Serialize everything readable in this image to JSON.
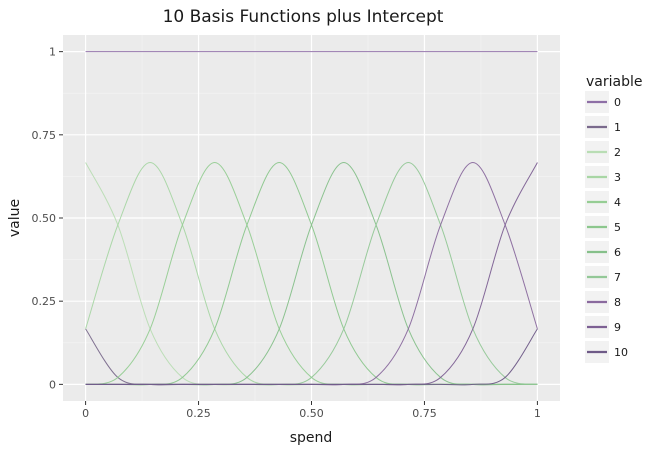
{
  "chart_data": {
    "type": "line",
    "title": "10 Basis Functions plus Intercept",
    "xlabel": "spend",
    "ylabel": "value",
    "xlim": [
      -0.05,
      1.05
    ],
    "ylim": [
      -0.05,
      1.05
    ],
    "x_ticks": [
      {
        "value": 0,
        "label": "0"
      },
      {
        "value": 0.25,
        "label": "0.25"
      },
      {
        "value": 0.5,
        "label": "0.50"
      },
      {
        "value": 0.75,
        "label": "0.75"
      },
      {
        "value": 1,
        "label": "1"
      }
    ],
    "y_ticks": [
      {
        "value": 0,
        "label": "0"
      },
      {
        "value": 0.25,
        "label": "0.25"
      },
      {
        "value": 0.5,
        "label": "0.50"
      },
      {
        "value": 0.75,
        "label": "0.75"
      },
      {
        "value": 1,
        "label": "1"
      }
    ],
    "grid": true,
    "legend": {
      "title": "variable",
      "position": "right"
    },
    "x": [
      0,
      0.0714,
      0.1429,
      0.2143,
      0.2857,
      0.3571,
      0.4286,
      0.5,
      0.5714,
      0.6429,
      0.7143,
      0.7857,
      0.8571,
      0.9286,
      1
    ],
    "series": [
      {
        "name": "0",
        "color": "#8e6fa6",
        "values": [
          1,
          1,
          1,
          1,
          1,
          1,
          1,
          1,
          1,
          1,
          1,
          1,
          1,
          1,
          1
        ]
      },
      {
        "name": "1",
        "color": "#7a6a8c",
        "values": [
          0.1667,
          0.0208,
          0,
          0,
          0,
          0,
          0,
          0,
          0,
          0,
          0,
          0,
          0,
          0,
          0
        ]
      },
      {
        "name": "2",
        "color": "#b9ddb4",
        "values": [
          0.6667,
          0.4792,
          0.1667,
          0.0208,
          0,
          0,
          0,
          0,
          0,
          0,
          0,
          0,
          0,
          0,
          0
        ]
      },
      {
        "name": "3",
        "color": "#a8d6a4",
        "values": [
          0.1667,
          0.4792,
          0.6667,
          0.4792,
          0.1667,
          0.0208,
          0,
          0,
          0,
          0,
          0,
          0,
          0,
          0,
          0
        ]
      },
      {
        "name": "4",
        "color": "#96cd94",
        "values": [
          0,
          0.0208,
          0.1667,
          0.4792,
          0.6667,
          0.4792,
          0.1667,
          0.0208,
          0,
          0,
          0,
          0,
          0,
          0,
          0
        ]
      },
      {
        "name": "5",
        "color": "#8cc78d",
        "values": [
          0,
          0,
          0,
          0.0208,
          0.1667,
          0.4792,
          0.6667,
          0.4792,
          0.1667,
          0.0208,
          0,
          0,
          0,
          0,
          0
        ]
      },
      {
        "name": "6",
        "color": "#86c08a",
        "values": [
          0,
          0,
          0,
          0,
          0,
          0.0208,
          0.1667,
          0.4792,
          0.6667,
          0.4792,
          0.1667,
          0.0208,
          0,
          0,
          0
        ]
      },
      {
        "name": "7",
        "color": "#93c897",
        "values": [
          0,
          0,
          0,
          0,
          0,
          0,
          0,
          0.0208,
          0.1667,
          0.4792,
          0.6667,
          0.4792,
          0.1667,
          0.0208,
          0
        ]
      },
      {
        "name": "8",
        "color": "#8a6a9e",
        "values": [
          0,
          0,
          0,
          0,
          0,
          0,
          0,
          0,
          0,
          0.0208,
          0.1667,
          0.4792,
          0.6667,
          0.4792,
          0.1667
        ]
      },
      {
        "name": "9",
        "color": "#7d6093",
        "values": [
          0,
          0,
          0,
          0,
          0,
          0,
          0,
          0,
          0,
          0,
          0,
          0.0208,
          0.1667,
          0.4792,
          0.6667
        ]
      },
      {
        "name": "10",
        "color": "#6e5a87",
        "values": [
          0,
          0,
          0,
          0,
          0,
          0,
          0,
          0,
          0,
          0,
          0,
          0,
          0,
          0.0208,
          0.1667
        ]
      }
    ]
  }
}
